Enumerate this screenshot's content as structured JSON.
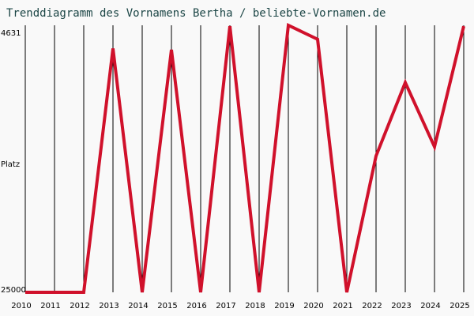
{
  "chart_data": {
    "type": "line",
    "title": "Trenddiagramm des Vornamens Bertha / beliebte-Vornamen.de",
    "ylabel": "Platz",
    "categories": [
      "2010",
      "2011",
      "2012",
      "2013",
      "2014",
      "2015",
      "2016",
      "2017",
      "2018",
      "2019",
      "2020",
      "2021",
      "2022",
      "2023",
      "2024",
      "2025"
    ],
    "series": [
      {
        "name": "Bertha",
        "color": "#d0112b",
        "values": [
          25000,
          25000,
          25000,
          6400,
          25000,
          6500,
          25000,
          4700,
          25000,
          4631,
          5700,
          25000,
          14600,
          9000,
          13900,
          4700
        ]
      }
    ],
    "ylim": [
      25000,
      4631
    ],
    "yticks": [
      4631,
      25000
    ],
    "grid": true
  }
}
